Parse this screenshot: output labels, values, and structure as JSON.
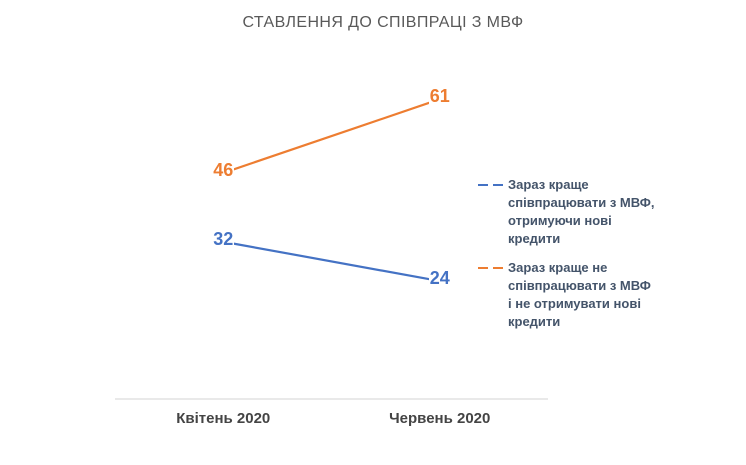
{
  "chart_data": {
    "type": "line",
    "title": "СТАВЛЕННЯ ДО СПІВПРАЦІ З МВФ",
    "categories": [
      "Квітень 2020",
      "Червень 2020"
    ],
    "series": [
      {
        "name": "Зараз краще співпрацювати з МВФ, отримуючи нові кредити",
        "label_lines": [
          "Зараз краще",
          "співпрацювати з МВФ,",
          "отримуючи нові",
          "кредити"
        ],
        "color": "#4472C4",
        "values": [
          32,
          24
        ]
      },
      {
        "name": "Зараз краще не співпрацювати з МВФ і не отримувати нові кредити",
        "label_lines": [
          "Зараз краще не",
          "співпрацювати з МВФ",
          "і не отримувати нові",
          "кредити"
        ],
        "color": "#ED7D31",
        "values": [
          46,
          61
        ]
      }
    ],
    "ylim": [
      0,
      70
    ],
    "grid": false,
    "legend_position": "right",
    "data_labels": true,
    "colors": {
      "axis_line": "#DCDCDC",
      "title_text": "#595959",
      "axis_label_text": "#444444",
      "legend_text": "#44546A"
    }
  }
}
